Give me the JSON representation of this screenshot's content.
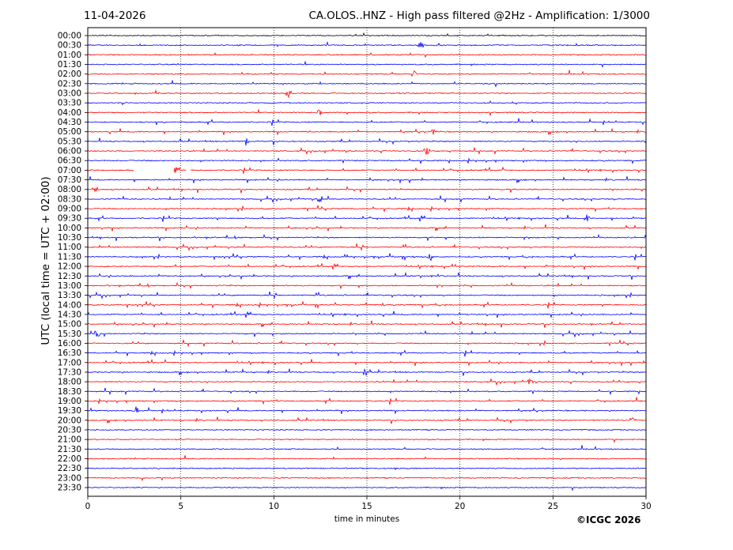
{
  "header": {
    "date": "11-04-2026",
    "title": "CA.OLOS..HNZ - High pass filtered @2Hz - Amplification: 1/3000"
  },
  "footer": {
    "copyright": "©ICGC 2026"
  },
  "chart_data": {
    "type": "line",
    "title": "CA.OLOS..HNZ - High pass filtered @2Hz - Amplification: 1/3000",
    "xlabel": "time in minutes",
    "ylabel": "UTC (local time = UTC + 02:00)",
    "xlim": [
      0,
      30
    ],
    "x_ticks": [
      "0",
      "5",
      "10",
      "15",
      "20",
      "25",
      "30"
    ],
    "y_ticks": [
      "00:00",
      "00:30",
      "01:00",
      "01:30",
      "02:00",
      "02:30",
      "03:00",
      "03:30",
      "04:00",
      "04:30",
      "05:00",
      "05:30",
      "06:00",
      "06:30",
      "07:00",
      "07:30",
      "08:00",
      "08:30",
      "09:00",
      "09:30",
      "10:00",
      "10:30",
      "11:00",
      "11:30",
      "12:00",
      "12:30",
      "13:00",
      "13:30",
      "14:00",
      "14:30",
      "15:00",
      "15:30",
      "16:00",
      "16:30",
      "17:00",
      "17:30",
      "18:00",
      "18:30",
      "19:00",
      "19:30",
      "20:00",
      "20:30",
      "21:00",
      "21:30",
      "22:00",
      "22:30",
      "23:00",
      "23:30"
    ],
    "trace_colors": {
      "hour_start": "#ff0000",
      "half_hour": "#0000ff",
      "first_row": "#000000"
    },
    "gridlines_x": [
      5,
      10,
      15,
      20,
      25
    ],
    "notable_events": [
      {
        "row": "00:30",
        "minute": 17.9
      },
      {
        "row": "02:00",
        "minute": 17.5
      },
      {
        "row": "03:00",
        "minute": 10.8
      },
      {
        "row": "04:00",
        "minute": 12.5
      },
      {
        "row": "05:00",
        "minute": 18.6
      },
      {
        "row": "05:30",
        "minute": 8.5
      },
      {
        "row": "06:00",
        "minute": 18.2
      },
      {
        "row": "07:00",
        "minute": 4.7
      },
      {
        "row": "08:00",
        "minute": 0.4
      },
      {
        "row": "08:30",
        "minute": 12.5
      },
      {
        "row": "09:30",
        "minute": 26.8
      },
      {
        "row": "11:30",
        "minute": 18.4
      },
      {
        "row": "15:30",
        "minute": 0.5
      },
      {
        "row": "17:30",
        "minute": 14.9
      },
      {
        "row": "18:00",
        "minute": 23.8
      },
      {
        "row": "19:30",
        "minute": 2.6
      },
      {
        "row": "20:00",
        "minute": 29.3
      }
    ],
    "gaps": [
      {
        "row": "07:00",
        "from": 2.5,
        "to": 4.6
      },
      {
        "row": "07:00",
        "from": 5.3,
        "to": 5.5
      }
    ]
  }
}
